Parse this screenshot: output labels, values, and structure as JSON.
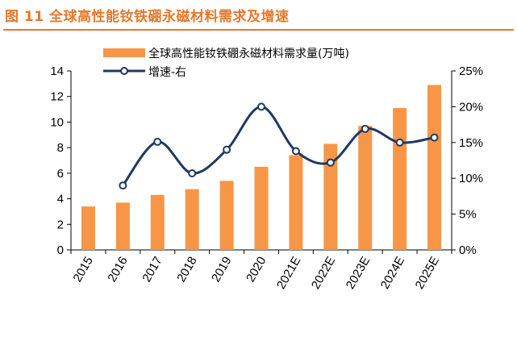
{
  "figure_title": "图 11 全球高性能钕铁硼永磁材料需求及增速",
  "chart_data": {
    "type": "bar",
    "categories": [
      "2015",
      "2016",
      "2017",
      "2018",
      "2019",
      "2020",
      "2021E",
      "2022E",
      "2023E",
      "2024E",
      "2025E"
    ],
    "series": [
      {
        "name": "全球高性能钕铁硼永磁材料需求量(万吨)",
        "type": "bar",
        "axis": "left",
        "color": "#f79646",
        "values": [
          3.4,
          3.7,
          4.3,
          4.75,
          5.4,
          6.5,
          7.4,
          8.3,
          9.7,
          11.1,
          12.9
        ]
      },
      {
        "name": "增速-右",
        "type": "line",
        "axis": "right",
        "color": "#1f3864",
        "values": [
          null,
          9.0,
          15.1,
          10.7,
          14.0,
          20.0,
          13.8,
          12.2,
          16.9,
          15.0,
          15.7
        ]
      }
    ],
    "y_left": {
      "min": 0,
      "max": 14,
      "ticks": [
        0,
        2,
        4,
        6,
        8,
        10,
        12,
        14
      ]
    },
    "y_right": {
      "min": 0,
      "max": 25,
      "ticks": [
        "0%",
        "5%",
        "10%",
        "15%",
        "20%",
        "25%"
      ]
    },
    "legend": "top-center",
    "grid": false
  }
}
